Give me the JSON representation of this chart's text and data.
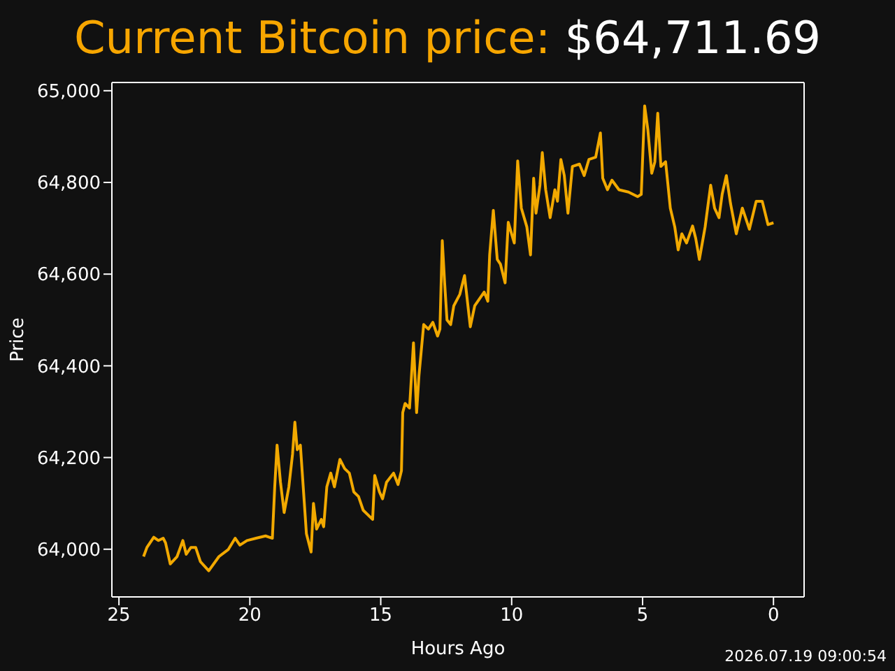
{
  "chart_data": {
    "type": "line",
    "title": "Current Bitcoin price:",
    "subtitle": "$64,711.69",
    "xlabel": "Hours Ago",
    "ylabel": "Price",
    "annotations": [
      "2026.07.19 09:00:54"
    ],
    "xlim": [
      25.27,
      -1.17
    ],
    "xticks": [
      25,
      20,
      15,
      10,
      5,
      0
    ],
    "ylim": [
      63896,
      65018
    ],
    "yticks": [
      {
        "value": 64000,
        "label": "64,000"
      },
      {
        "value": 64200,
        "label": "64,200"
      },
      {
        "value": 64400,
        "label": "64,400"
      },
      {
        "value": 64600,
        "label": "64,600"
      },
      {
        "value": 64800,
        "label": "64,800"
      },
      {
        "value": 65000,
        "label": "65,000"
      }
    ],
    "grid": false,
    "legend": false,
    "marker": "none",
    "line_style": "solid",
    "x": [
      24.06,
      23.93,
      23.67,
      23.49,
      23.31,
      23.22,
      23.04,
      22.78,
      22.56,
      22.43,
      22.25,
      22.07,
      21.89,
      21.57,
      21.18,
      20.83,
      20.56,
      20.38,
      20.11,
      19.76,
      19.4,
      19.14,
      19.05,
      18.96,
      18.83,
      18.69,
      18.51,
      18.37,
      18.28,
      18.19,
      18.07,
      17.84,
      17.66,
      17.57,
      17.45,
      17.27,
      17.18,
      17.06,
      16.91,
      16.77,
      16.56,
      16.38,
      16.2,
      16.03,
      15.85,
      15.67,
      15.31,
      15.23,
      15.05,
      14.93,
      14.78,
      14.51,
      14.34,
      14.21,
      14.16,
      14.07,
      13.9,
      13.75,
      13.63,
      13.54,
      13.36,
      13.18,
      13.01,
      12.83,
      12.74,
      12.65,
      12.56,
      12.47,
      12.33,
      12.21,
      11.98,
      11.8,
      11.58,
      11.41,
      11.05,
      10.91,
      10.84,
      10.7,
      10.55,
      10.43,
      10.25,
      10.13,
      9.9,
      9.77,
      9.63,
      9.42,
      9.28,
      9.16,
      9.07,
      8.92,
      8.83,
      8.7,
      8.53,
      8.35,
      8.25,
      8.12,
      7.99,
      7.85,
      7.68,
      7.41,
      7.23,
      7.05,
      6.79,
      6.61,
      6.52,
      6.34,
      6.17,
      5.9,
      5.54,
      5.19,
      5.05,
      4.92,
      4.8,
      4.65,
      4.53,
      4.42,
      4.3,
      4.12,
      3.94,
      3.77,
      3.64,
      3.5,
      3.32,
      3.09,
      2.97,
      2.83,
      2.61,
      2.4,
      2.25,
      2.08,
      1.96,
      1.8,
      1.64,
      1.42,
      1.19,
      0.92,
      0.66,
      0.43,
      0.21,
      0
    ],
    "series": [
      {
        "color": "#f2a900",
        "values": [
          63984,
          64004,
          64026,
          64019,
          64024,
          64014,
          63968,
          63984,
          64019,
          63989,
          64004,
          64004,
          63973,
          63953,
          63984,
          63999,
          64024,
          64009,
          64019,
          64024,
          64029,
          64024,
          64136,
          64227,
          64146,
          64080,
          64136,
          64207,
          64277,
          64217,
          64227,
          64034,
          63994,
          64100,
          64044,
          64065,
          64049,
          64136,
          64166,
          64136,
          64196,
          64176,
          64166,
          64125,
          64115,
          64085,
          64065,
          64161,
          64125,
          64110,
          64146,
          64166,
          64141,
          64171,
          64298,
          64318,
          64308,
          64450,
          64298,
          64379,
          64490,
          64480,
          64495,
          64465,
          64480,
          64673,
          64581,
          64500,
          64490,
          64531,
          64556,
          64597,
          64485,
          64531,
          64561,
          64541,
          64642,
          64739,
          64632,
          64622,
          64581,
          64713,
          64668,
          64847,
          64744,
          64703,
          64642,
          64809,
          64733,
          64794,
          64865,
          64784,
          64723,
          64784,
          64759,
          64850,
          64815,
          64733,
          64835,
          64840,
          64815,
          64850,
          64855,
          64908,
          64809,
          64784,
          64805,
          64784,
          64779,
          64769,
          64774,
          64967,
          64916,
          64820,
          64845,
          64951,
          64835,
          64845,
          64744,
          64703,
          64653,
          64688,
          64668,
          64705,
          64678,
          64632,
          64703,
          64794,
          64744,
          64723,
          64774,
          64815,
          64754,
          64688,
          64744,
          64698,
          64759,
          64759,
          64708,
          64712
        ]
      }
    ]
  }
}
